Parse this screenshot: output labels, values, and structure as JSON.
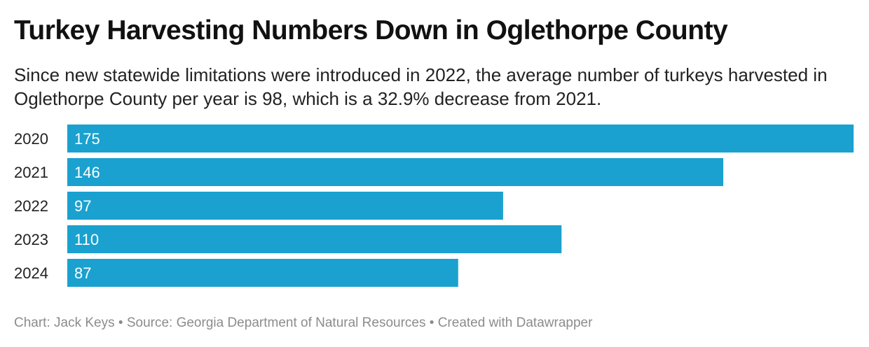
{
  "title": "Turkey Harvesting Numbers Down in Oglethorpe County",
  "subtitle": "Since new statewide limitations were introduced in 2022, the average number of turkeys harvested in Oglethorpe County per year is 98, which is a 32.9% decrease from 2021.",
  "footer": {
    "chart_credit": "Chart: Jack Keys",
    "separator": "•",
    "source": "Source: Georgia Department of Natural Resources",
    "created_with": "Created with Datawrapper"
  },
  "colors": {
    "bar": "#1aa1cf",
    "bar_label": "#ffffff",
    "category_label": "#222222"
  },
  "chart_data": {
    "type": "bar",
    "orientation": "horizontal",
    "categories": [
      "2020",
      "2021",
      "2022",
      "2023",
      "2024"
    ],
    "values": [
      175,
      146,
      97,
      110,
      87
    ],
    "xlim": [
      0,
      175
    ],
    "grid": false,
    "legend": "none",
    "data_labels": "inside-left"
  }
}
